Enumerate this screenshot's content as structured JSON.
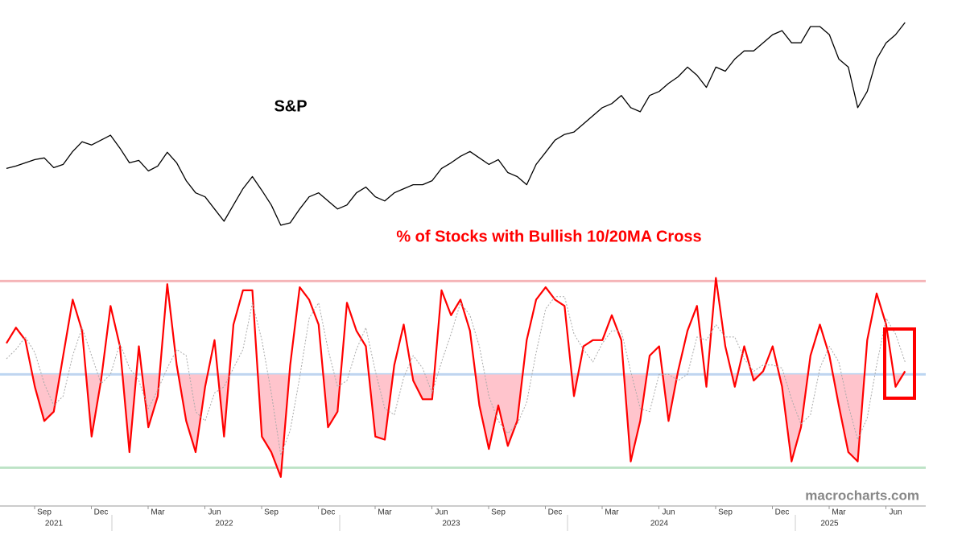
{
  "chart_data": {
    "type": "line",
    "categories": [
      null,
      null,
      null,
      null,
      "Sep",
      null,
      null,
      null,
      null,
      null,
      "Dec",
      null,
      null,
      null,
      null,
      null,
      "Mar",
      null,
      null,
      null,
      null,
      null,
      "Jun",
      null,
      null,
      null,
      null,
      null,
      "Sep",
      null,
      null,
      null,
      null,
      null,
      "Dec",
      null,
      null,
      null,
      null,
      null,
      "Mar",
      null,
      null,
      null,
      null,
      null,
      "Jun",
      null,
      null,
      null,
      null,
      null,
      "Sep",
      null,
      null,
      null,
      null,
      null,
      "Dec",
      null,
      null,
      null,
      null,
      null,
      "Mar",
      null,
      null,
      null,
      null,
      null,
      "Jun",
      null,
      null,
      null,
      null,
      null,
      "Sep",
      null,
      null,
      null,
      null,
      null,
      "Dec",
      null,
      null,
      null,
      null,
      null,
      "Mar",
      null,
      null,
      null,
      null,
      null,
      "Jun",
      null
    ],
    "year_labels": [
      null,
      null,
      null,
      null,
      "2021",
      null,
      null,
      null,
      null,
      null,
      null,
      null,
      null,
      null,
      null,
      null,
      null,
      null,
      null,
      null,
      null,
      null,
      "2022",
      null,
      null,
      null,
      null,
      null,
      null,
      null,
      null,
      null,
      null,
      null,
      null,
      null,
      null,
      null,
      null,
      null,
      null,
      null,
      null,
      null,
      null,
      null,
      "2023",
      null,
      null,
      null,
      null,
      null,
      null,
      null,
      null,
      null,
      null,
      null,
      null,
      null,
      null,
      null,
      null,
      null,
      null,
      null,
      null,
      null,
      "2024",
      null,
      null,
      null,
      null,
      null,
      null,
      null,
      null,
      null,
      null,
      null,
      null,
      null,
      null,
      null,
      null,
      null,
      "2025",
      null,
      null,
      null,
      null,
      null,
      null,
      null
    ],
    "series": [
      {
        "name": "S&P",
        "panel": "price",
        "color": "#000000",
        "values": [
          4350,
          4380,
          4420,
          4460,
          4480,
          4360,
          4400,
          4560,
          4680,
          4640,
          4700,
          4760,
          4600,
          4420,
          4450,
          4320,
          4380,
          4550,
          4420,
          4200,
          4050,
          4000,
          3850,
          3700,
          3900,
          4100,
          4250,
          4080,
          3900,
          3650,
          3680,
          3850,
          4000,
          4050,
          3950,
          3850,
          3900,
          4050,
          4120,
          4000,
          3950,
          4050,
          4100,
          4150,
          4150,
          4200,
          4350,
          4420,
          4500,
          4560,
          4480,
          4400,
          4460,
          4300,
          4250,
          4150,
          4400,
          4550,
          4700,
          4770,
          4800,
          4900,
          5000,
          5100,
          5150,
          5250,
          5100,
          5050,
          5250,
          5300,
          5400,
          5480,
          5600,
          5500,
          5350,
          5600,
          5550,
          5700,
          5800,
          5800,
          5900,
          6000,
          6050,
          5900,
          5900,
          6100,
          6100,
          6000,
          5700,
          5600,
          5100,
          5300,
          5700,
          5900,
          6000,
          6150
        ]
      },
      {
        "name": "% of Stocks with Bullish 10/20MA Cross",
        "panel": "breadth",
        "color": "#ff0000",
        "fill_below": 50,
        "fill_color": "#ffc4cc",
        "values": [
          60,
          65,
          61,
          46,
          35,
          38,
          56,
          74,
          64,
          30,
          48,
          72,
          59,
          25,
          59,
          33,
          43,
          79,
          53,
          35,
          25,
          46,
          61,
          30,
          66,
          77,
          77,
          30,
          25,
          17,
          53,
          78,
          74,
          66,
          33,
          38,
          73,
          64,
          59,
          30,
          29,
          53,
          66,
          48,
          42,
          42,
          77,
          69,
          74,
          64,
          40,
          26,
          40,
          27,
          35,
          61,
          74,
          78,
          74,
          72,
          43,
          59,
          61,
          61,
          69,
          61,
          22,
          35,
          56,
          59,
          35,
          51,
          64,
          72,
          46,
          81,
          59,
          46,
          59,
          48,
          51,
          59,
          46,
          22,
          33,
          56,
          66,
          56,
          40,
          25,
          22,
          61,
          76,
          66,
          46,
          51
        ]
      },
      {
        "panel": "breadth",
        "color": "#aaaaaa",
        "dashed": true,
        "values": [
          55,
          58,
          62,
          57,
          47,
          40,
          43,
          56,
          65,
          56,
          47,
          50,
          60,
          52,
          48,
          39,
          45,
          52,
          58,
          56,
          38,
          35,
          44,
          46,
          52,
          58,
          73,
          61,
          44,
          24,
          32,
          49,
          68,
          73,
          58,
          46,
          48,
          58,
          65,
          51,
          39,
          37,
          49,
          56,
          52,
          44,
          54,
          63,
          73,
          69,
          59,
          43,
          35,
          31,
          34,
          41,
          57,
          71,
          75,
          75,
          63,
          58,
          54,
          60,
          64,
          64,
          51,
          39,
          38,
          50,
          50,
          48,
          50,
          62,
          61,
          66,
          62,
          62,
          55,
          51,
          53,
          53,
          52,
          42,
          34,
          37,
          52,
          59,
          54,
          40,
          29,
          36,
          53,
          68,
          63,
          54
        ]
      }
    ],
    "ylim": [
      10,
      85
    ],
    "reference_lines": [
      {
        "value": 80,
        "color": "#f5b5b8"
      },
      {
        "value": 50,
        "color": "#bcd6f2"
      },
      {
        "value": 20,
        "color": "#bde3c6"
      }
    ],
    "watermark": "macrocharts.com"
  }
}
